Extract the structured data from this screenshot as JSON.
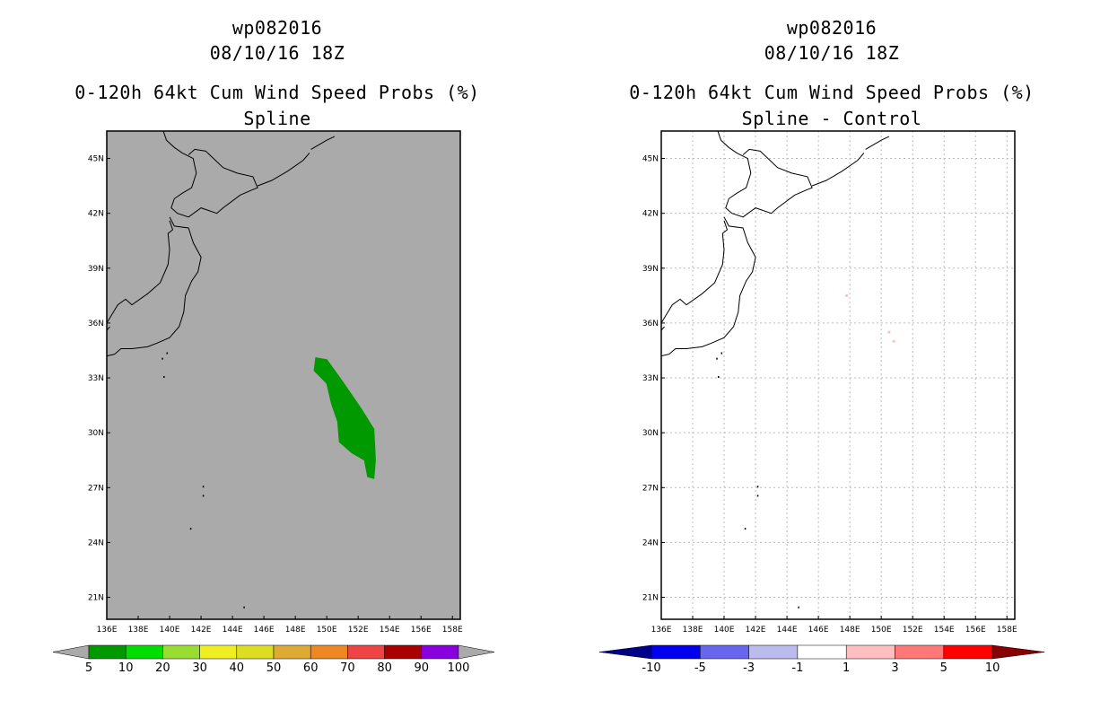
{
  "colors": {
    "left_fill": "#aaaaaa",
    "prob_contour": "#009900",
    "grid": "#bbbbbb",
    "diff_light_red": "#ffbfbf"
  },
  "chart_data": [
    {
      "type": "map",
      "panel": "left",
      "title_lines": [
        "wp082016",
        "08/10/16 18Z",
        "0-120h 64kt Cum Wind Speed Probs (%)",
        "Spline"
      ],
      "lon_ticks": [
        "136E",
        "138E",
        "140E",
        "142E",
        "144E",
        "146E",
        "148E",
        "150E",
        "152E",
        "154E",
        "156E",
        "158E"
      ],
      "lat_ticks": [
        "45N",
        "42N",
        "39N",
        "36N",
        "33N",
        "30N",
        "27N",
        "24N",
        "21N"
      ],
      "lon_range": [
        136,
        158.5
      ],
      "lat_range": [
        19.8,
        46.5
      ],
      "grid": false,
      "contour": {
        "name": "64kt probability 5-10%",
        "color": "#009900",
        "points": [
          [
            149.3,
            34.1
          ],
          [
            150.0,
            34.0
          ],
          [
            151.0,
            32.8
          ],
          [
            152.2,
            31.3
          ],
          [
            153.0,
            30.2
          ],
          [
            153.1,
            28.5
          ],
          [
            153.0,
            27.5
          ],
          [
            152.6,
            27.6
          ],
          [
            152.4,
            28.5
          ],
          [
            151.6,
            28.9
          ],
          [
            150.8,
            29.5
          ],
          [
            150.7,
            30.6
          ],
          [
            150.3,
            31.6
          ],
          [
            150.0,
            32.7
          ],
          [
            149.2,
            33.4
          ]
        ]
      },
      "colorbar": {
        "labels": [
          "5",
          "10",
          "20",
          "30",
          "40",
          "50",
          "60",
          "70",
          "80",
          "90",
          "100"
        ],
        "colors": [
          "#009900",
          "#00dd00",
          "#99dd33",
          "#eeee22",
          "#dddd22",
          "#ddaa33",
          "#ee8822",
          "#ee4444",
          "#aa0000",
          "#8800dd"
        ],
        "end_color": "#aaaaaa"
      }
    },
    {
      "type": "map",
      "panel": "right",
      "title_lines": [
        "wp082016",
        "08/10/16 18Z",
        "0-120h 64kt Cum Wind Speed Probs (%)",
        "Spline - Control"
      ],
      "lon_ticks": [
        "136E",
        "138E",
        "140E",
        "142E",
        "144E",
        "146E",
        "148E",
        "150E",
        "152E",
        "154E",
        "156E",
        "158E"
      ],
      "lat_ticks": [
        "45N",
        "42N",
        "39N",
        "36N",
        "33N",
        "30N",
        "27N",
        "24N",
        "21N"
      ],
      "lon_range": [
        136,
        158.5
      ],
      "lat_range": [
        19.8,
        46.5
      ],
      "grid": true,
      "speckles": [
        [
          147.8,
          37.5
        ],
        [
          150.5,
          35.5
        ],
        [
          150.8,
          35.0
        ]
      ],
      "colorbar": {
        "labels": [
          "-10",
          "-5",
          "-3",
          "-1",
          "1",
          "3",
          "5",
          "10"
        ],
        "colors": [
          "#0000ee",
          "#6666ee",
          "#bbbbee",
          "#ffffff",
          "#ffbfbf",
          "#ff7777",
          "#ff0000"
        ],
        "start_color": "#000088",
        "end_color": "#880000"
      }
    }
  ]
}
